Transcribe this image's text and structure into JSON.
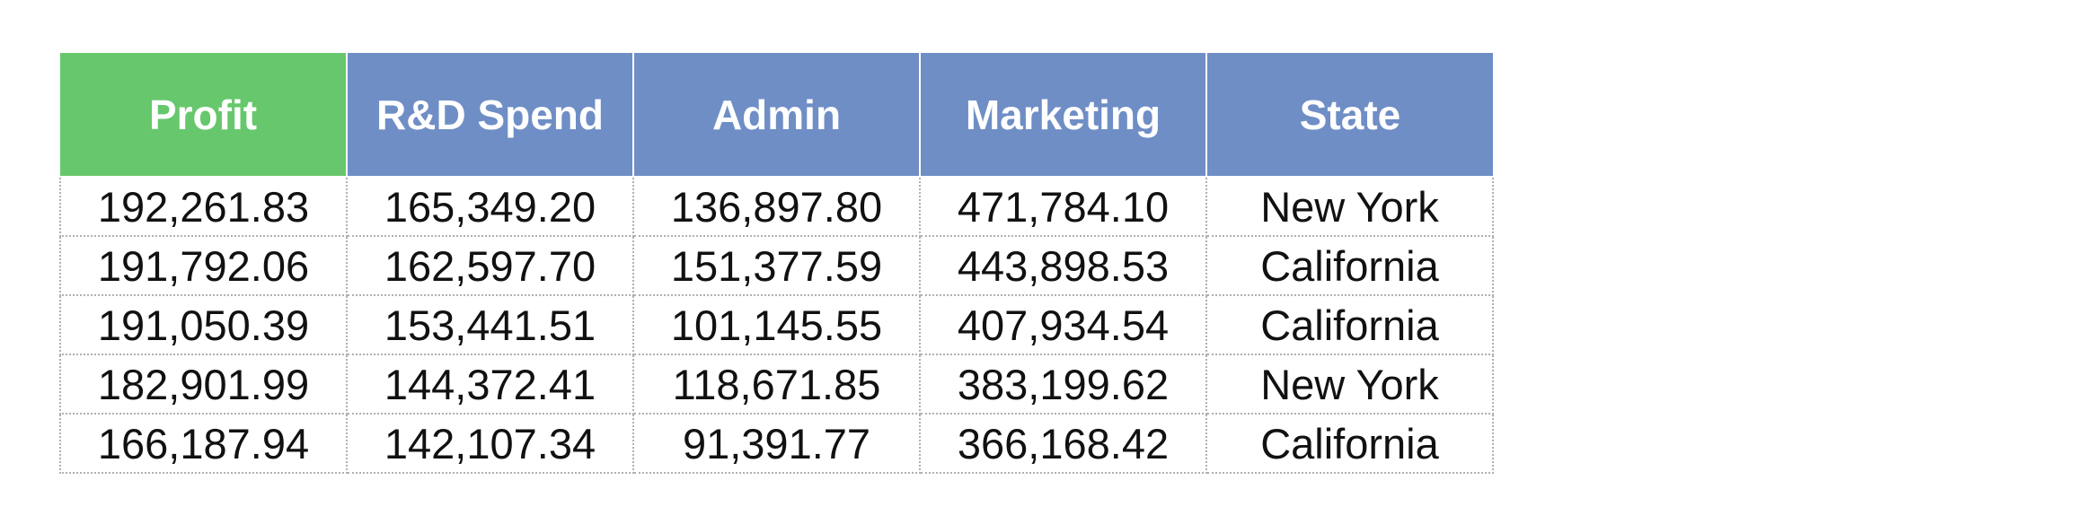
{
  "table": {
    "columns": [
      {
        "label": "Profit",
        "color": "#67C76C"
      },
      {
        "label": "R&D Spend",
        "color": "#6F8EC6"
      },
      {
        "label": "Admin",
        "color": "#6F8EC6"
      },
      {
        "label": "Marketing",
        "color": "#6F8EC6"
      },
      {
        "label": "State",
        "color": "#6F8EC6"
      }
    ],
    "rows": [
      [
        "192,261.83",
        "165,349.20",
        "136,897.80",
        "471,784.10",
        "New York"
      ],
      [
        "191,792.06",
        "162,597.70",
        "151,377.59",
        "443,898.53",
        "California"
      ],
      [
        "191,050.39",
        "153,441.51",
        "101,145.55",
        "407,934.54",
        "California"
      ],
      [
        "182,901.99",
        "144,372.41",
        "118,671.85",
        "383,199.62",
        "New York"
      ],
      [
        "166,187.94",
        "142,107.34",
        "91,391.77",
        "366,168.42",
        "California"
      ]
    ]
  }
}
